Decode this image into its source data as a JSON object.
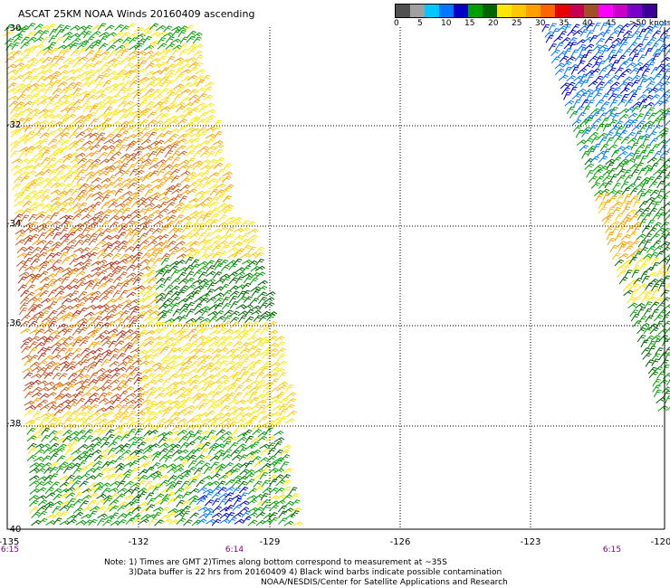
{
  "title": "ASCAT 25KM NOAA Winds 20160409 ascending",
  "scale": {
    "labels": [
      "0",
      "5",
      "10",
      "15",
      "20",
      "25",
      "30",
      "35",
      "40",
      "45",
      ">50 knots"
    ],
    "colors": [
      "#505050",
      "#a0a0a0",
      "#00c8ff",
      "#0078ff",
      "#0000c8",
      "#00a000",
      "#006400",
      "#ffe600",
      "#ffc800",
      "#ffa000",
      "#ff6400",
      "#e60000",
      "#c80050",
      "#a05028",
      "#ff00ff",
      "#c800c8",
      "#7800c8",
      "#3c0096"
    ]
  },
  "map": {
    "lat_labels": [
      "-30",
      "-32",
      "-34",
      "-36",
      "-38",
      "-40"
    ],
    "lon_labels": [
      "-135",
      "-132",
      "-129",
      "-126",
      "-123",
      "-120"
    ],
    "pass_times": [
      "6:15",
      "6:14",
      "6:15"
    ]
  },
  "notes": {
    "line1": "Note: 1) Times are GMT 2)Times along bottom correspond to measurement at ~35S",
    "line2": "3)Data buffer is 22 hrs from 20160409 4) Black wind barbs indicate possible contamination",
    "line3": "NOAA/NESDIS/Center for Satellite Applications and Research"
  }
}
